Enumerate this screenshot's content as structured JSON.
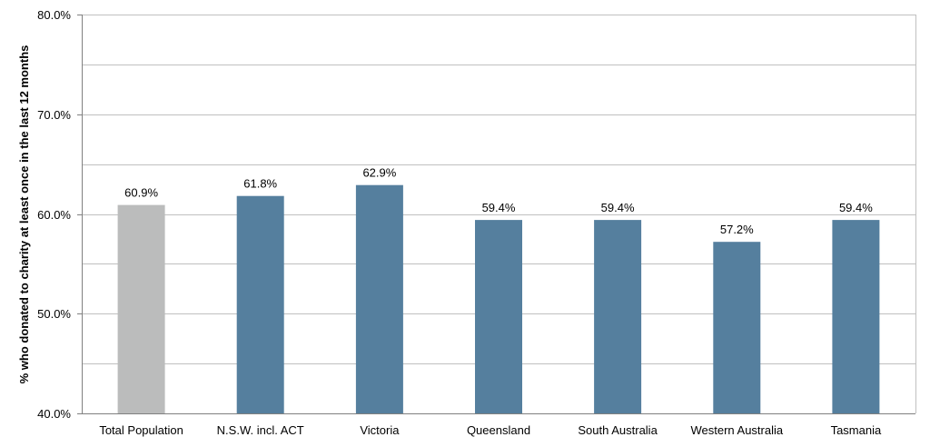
{
  "chart_data": {
    "type": "bar",
    "title": "",
    "xlabel": "",
    "ylabel": "% who donated to charity at least once in the last 12 months",
    "ylim": [
      40.0,
      80.0
    ],
    "ytick_step": 10.0,
    "minor_grid_step": 5.0,
    "grid": true,
    "legend": "none",
    "categories": [
      "Total Population",
      "N.S.W. incl. ACT",
      "Victoria",
      "Queensland",
      "South Australia",
      "Western Australia",
      "Tasmania"
    ],
    "values": [
      60.9,
      61.8,
      62.9,
      59.4,
      59.4,
      57.2,
      59.4
    ],
    "data_labels": [
      "60.9%",
      "61.8%",
      "62.9%",
      "59.4%",
      "59.4%",
      "57.2%",
      "59.4%"
    ],
    "ytick_labels": [
      "40.0%",
      "50.0%",
      "60.0%",
      "70.0%",
      "80.0%"
    ],
    "colors": [
      "#bbbcbc",
      "#557f9e",
      "#557f9e",
      "#557f9e",
      "#557f9e",
      "#557f9e",
      "#557f9e"
    ]
  },
  "style": {
    "grid_color": "#c0c0c0",
    "axis_color": "#808080"
  }
}
